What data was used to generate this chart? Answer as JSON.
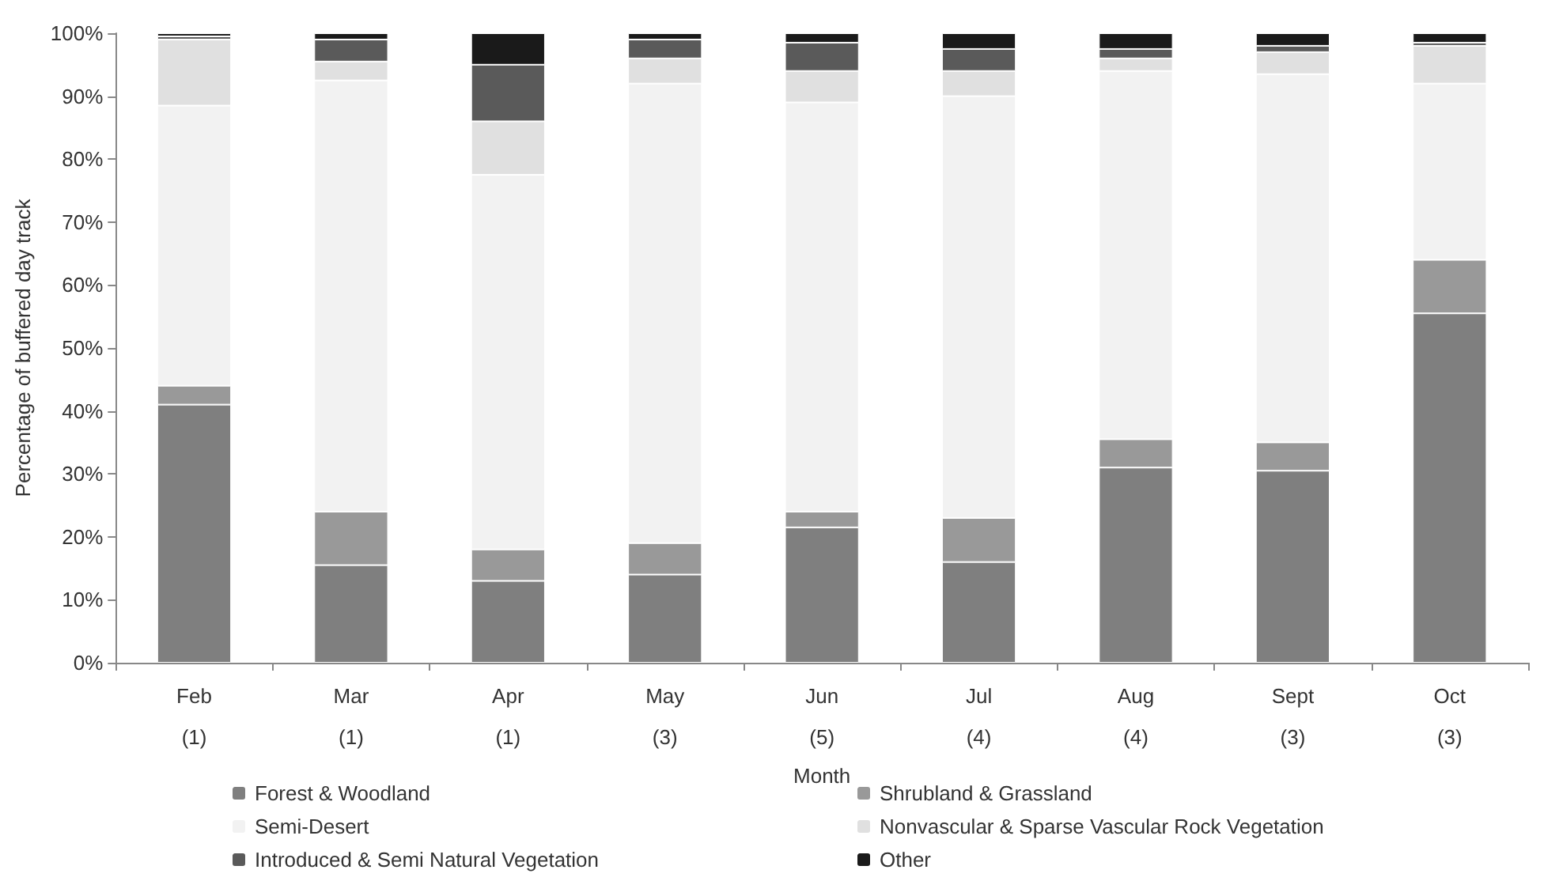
{
  "chart_data": {
    "type": "bar",
    "stacked": true,
    "xlabel": "Month",
    "ylabel": "Percentage of buffered day track",
    "categories": [
      "Feb\n(1)",
      "Mar\n(1)",
      "Apr\n(1)",
      "May\n(3)",
      "Jun\n(5)",
      "Jul\n(4)",
      "Aug\n(4)",
      "Sept\n(3)",
      "Oct\n(3)"
    ],
    "series": [
      {
        "name": "Forest & Woodland",
        "color": "#7f7f7f",
        "values": [
          41,
          15.5,
          13,
          14,
          21.5,
          16,
          31,
          30.5,
          55.5
        ]
      },
      {
        "name": "Shrubland & Grassland",
        "color": "#999999",
        "values": [
          3,
          8.5,
          5,
          5,
          2.5,
          7,
          4.5,
          4.5,
          8.5
        ]
      },
      {
        "name": "Semi-Desert",
        "color": "#f2f2f2",
        "values": [
          44.5,
          68.5,
          59.5,
          73,
          65,
          67,
          58.5,
          58.5,
          28
        ]
      },
      {
        "name": "Nonvascular & Sparse Vascular Rock Vegetation",
        "color": "#e0e0e0",
        "values": [
          10.5,
          3,
          8.5,
          4,
          5,
          4,
          2,
          3.5,
          6
        ]
      },
      {
        "name": "Introduced & Semi Natural Vegetation",
        "color": "#5a5a5a",
        "values": [
          0.5,
          3.5,
          9,
          3,
          4.5,
          3.5,
          1.5,
          1,
          0.5
        ]
      },
      {
        "name": "Other",
        "color": "#1a1a1a",
        "values": [
          0.5,
          1,
          5,
          1,
          1.5,
          2.5,
          2.5,
          2,
          1.5
        ]
      }
    ],
    "ylim": [
      0,
      100
    ],
    "yticks": [
      {
        "value": 0,
        "label": "0%"
      },
      {
        "value": 10,
        "label": "10%"
      },
      {
        "value": 20,
        "label": "20%"
      },
      {
        "value": 30,
        "label": "30%"
      },
      {
        "value": 40,
        "label": "40%"
      },
      {
        "value": 50,
        "label": "50%"
      },
      {
        "value": 60,
        "label": "60%"
      },
      {
        "value": 70,
        "label": "70%"
      },
      {
        "value": 80,
        "label": "80%"
      },
      {
        "value": 90,
        "label": "90%"
      },
      {
        "value": 100,
        "label": "100%"
      }
    ],
    "grid": false,
    "legend": "bottom"
  }
}
